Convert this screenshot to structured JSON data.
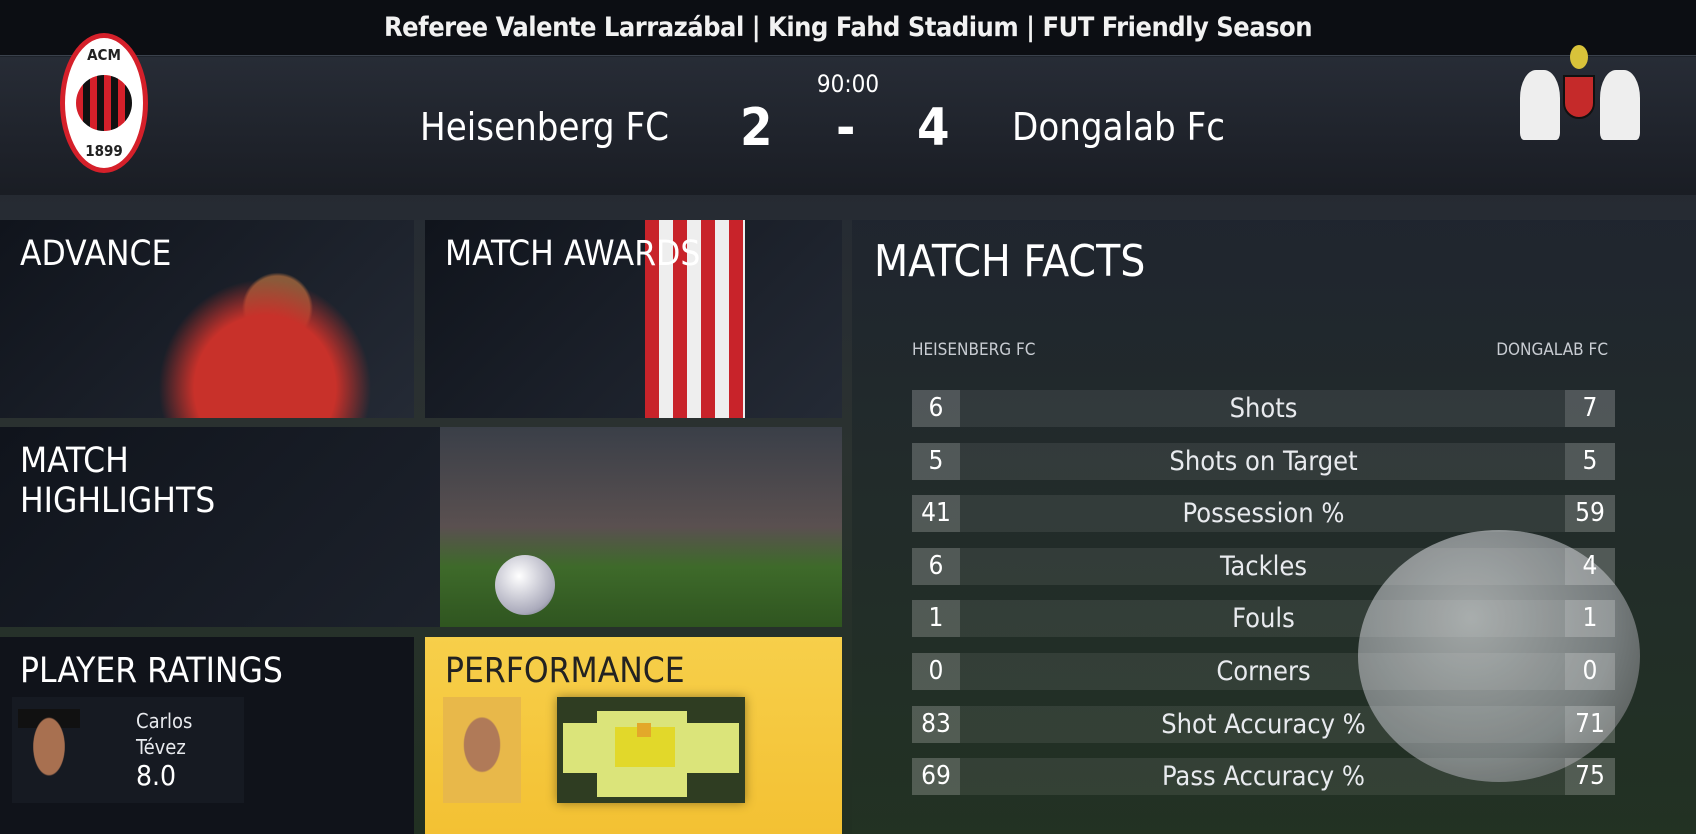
{
  "top_bar": {
    "info": "Referee Valente Larrazábal | King Fahd Stadium | FUT Friendly Season"
  },
  "scoreboard": {
    "time": "90:00",
    "home_team": "Heisenberg FC",
    "home_score": "2",
    "separator": "-",
    "away_score": "4",
    "away_team": "Dongalab Fc",
    "home_crest": "ACM 1899",
    "away_crest": "EXETER CITY FC"
  },
  "tiles": {
    "advance": "ADVANCE",
    "match_awards": "MATCH AWARDS",
    "highlights_line1": "MATCH",
    "highlights_line2": "HIGHLIGHTS",
    "player_ratings": "PLAYER RATINGS",
    "performance": "PERFORMANCE"
  },
  "player_rating": {
    "first_name": "Carlos",
    "last_name": "Tévez",
    "rating": "8.0"
  },
  "match_facts": {
    "title": "MATCH FACTS",
    "home_label": "HEISENBERG FC",
    "away_label": "DONGALAB FC",
    "rows": [
      {
        "name": "Shots",
        "home": "6",
        "away": "7"
      },
      {
        "name": "Shots on Target",
        "home": "5",
        "away": "5"
      },
      {
        "name": "Possession %",
        "home": "41",
        "away": "59"
      },
      {
        "name": "Tackles",
        "home": "6",
        "away": "4"
      },
      {
        "name": "Fouls",
        "home": "1",
        "away": "1"
      },
      {
        "name": "Corners",
        "home": "0",
        "away": "0"
      },
      {
        "name": "Shot Accuracy %",
        "home": "83",
        "away": "71"
      },
      {
        "name": "Pass Accuracy %",
        "home": "69",
        "away": "75"
      }
    ]
  },
  "colors": {
    "performance_tile": "#f5c842",
    "acm_red": "#d5202a"
  }
}
